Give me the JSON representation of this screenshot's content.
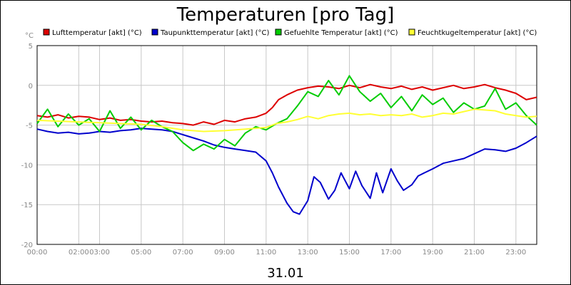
{
  "chart_data": {
    "type": "line",
    "title": "Temperaturen [pro Tag]",
    "ylabel": "°C",
    "date_label": "31.01",
    "xlim": [
      0,
      24
    ],
    "ylim": [
      -20,
      5
    ],
    "y_ticks": [
      5,
      0,
      -5,
      -10,
      -15,
      -20
    ],
    "x_ticks": [
      {
        "value": 0,
        "label": "00:00"
      },
      {
        "value": 2,
        "label": "02:00"
      },
      {
        "value": 3,
        "label": "03:00"
      },
      {
        "value": 5,
        "label": "05:00"
      },
      {
        "value": 7,
        "label": "07:00"
      },
      {
        "value": 9,
        "label": "09:00"
      },
      {
        "value": 11,
        "label": "11:00"
      },
      {
        "value": 13,
        "label": "13:00"
      },
      {
        "value": 15,
        "label": "15:00"
      },
      {
        "value": 17,
        "label": "17:00"
      },
      {
        "value": 19,
        "label": "19:00"
      },
      {
        "value": 21,
        "label": "21:00"
      },
      {
        "value": 23,
        "label": "23:00"
      }
    ],
    "grid": true,
    "legend_position": "top",
    "series": [
      {
        "name": "Lufttemperatur [akt] (°C)",
        "color": "#dd0000",
        "points": [
          [
            0,
            -3.8
          ],
          [
            0.5,
            -4.0
          ],
          [
            1,
            -3.7
          ],
          [
            1.5,
            -4.1
          ],
          [
            2,
            -3.9
          ],
          [
            2.5,
            -4.0
          ],
          [
            3,
            -4.3
          ],
          [
            3.5,
            -4.1
          ],
          [
            4,
            -4.4
          ],
          [
            4.5,
            -4.3
          ],
          [
            5,
            -4.5
          ],
          [
            5.5,
            -4.6
          ],
          [
            6,
            -4.5
          ],
          [
            6.5,
            -4.7
          ],
          [
            7,
            -4.8
          ],
          [
            7.5,
            -5.0
          ],
          [
            8,
            -4.6
          ],
          [
            8.5,
            -4.9
          ],
          [
            9,
            -4.4
          ],
          [
            9.5,
            -4.6
          ],
          [
            10,
            -4.2
          ],
          [
            10.5,
            -4.0
          ],
          [
            11,
            -3.5
          ],
          [
            11.3,
            -2.8
          ],
          [
            11.6,
            -1.8
          ],
          [
            12,
            -1.2
          ],
          [
            12.5,
            -0.6
          ],
          [
            13,
            -0.3
          ],
          [
            13.5,
            -0.1
          ],
          [
            14,
            -0.2
          ],
          [
            14.5,
            -0.4
          ],
          [
            15,
            0.0
          ],
          [
            15.5,
            -0.3
          ],
          [
            16,
            0.1
          ],
          [
            16.5,
            -0.2
          ],
          [
            17,
            -0.4
          ],
          [
            17.5,
            -0.1
          ],
          [
            18,
            -0.5
          ],
          [
            18.5,
            -0.2
          ],
          [
            19,
            -0.6
          ],
          [
            19.5,
            -0.3
          ],
          [
            20,
            0.0
          ],
          [
            20.5,
            -0.4
          ],
          [
            21,
            -0.2
          ],
          [
            21.5,
            0.1
          ],
          [
            22,
            -0.3
          ],
          [
            22.5,
            -0.6
          ],
          [
            23,
            -1.0
          ],
          [
            23.5,
            -1.8
          ],
          [
            24,
            -1.5
          ]
        ]
      },
      {
        "name": "Taupunkttemperatur [akt] (°C)",
        "color": "#0000cc",
        "points": [
          [
            0,
            -5.5
          ],
          [
            0.5,
            -5.8
          ],
          [
            1,
            -6.0
          ],
          [
            1.5,
            -5.9
          ],
          [
            2,
            -6.1
          ],
          [
            2.5,
            -6.0
          ],
          [
            3,
            -5.8
          ],
          [
            3.5,
            -5.9
          ],
          [
            4,
            -5.7
          ],
          [
            4.5,
            -5.6
          ],
          [
            5,
            -5.4
          ],
          [
            5.5,
            -5.5
          ],
          [
            6,
            -5.6
          ],
          [
            6.5,
            -5.8
          ],
          [
            7,
            -6.2
          ],
          [
            7.5,
            -6.6
          ],
          [
            8,
            -7.0
          ],
          [
            8.5,
            -7.5
          ],
          [
            9,
            -7.8
          ],
          [
            9.5,
            -8.0
          ],
          [
            10,
            -8.2
          ],
          [
            10.5,
            -8.4
          ],
          [
            11,
            -9.5
          ],
          [
            11.3,
            -11.0
          ],
          [
            11.6,
            -12.8
          ],
          [
            12,
            -14.8
          ],
          [
            12.3,
            -15.9
          ],
          [
            12.6,
            -16.2
          ],
          [
            13,
            -14.5
          ],
          [
            13.3,
            -11.5
          ],
          [
            13.6,
            -12.2
          ],
          [
            14,
            -14.3
          ],
          [
            14.3,
            -13.2
          ],
          [
            14.6,
            -11.0
          ],
          [
            15,
            -13.0
          ],
          [
            15.3,
            -10.8
          ],
          [
            15.6,
            -12.6
          ],
          [
            16,
            -14.2
          ],
          [
            16.3,
            -11.0
          ],
          [
            16.6,
            -13.5
          ],
          [
            17,
            -10.5
          ],
          [
            17.3,
            -12.0
          ],
          [
            17.6,
            -13.2
          ],
          [
            18,
            -12.5
          ],
          [
            18.3,
            -11.4
          ],
          [
            18.6,
            -11.0
          ],
          [
            19,
            -10.5
          ],
          [
            19.5,
            -9.8
          ],
          [
            20,
            -9.5
          ],
          [
            20.5,
            -9.2
          ],
          [
            21,
            -8.6
          ],
          [
            21.5,
            -8.0
          ],
          [
            22,
            -8.1
          ],
          [
            22.5,
            -8.3
          ],
          [
            23,
            -7.9
          ],
          [
            23.5,
            -7.2
          ],
          [
            24,
            -6.4
          ]
        ]
      },
      {
        "name": "Gefuehlte Temperatur [akt] (°C)",
        "color": "#00cc00",
        "points": [
          [
            0,
            -4.8
          ],
          [
            0.5,
            -3.0
          ],
          [
            1,
            -5.2
          ],
          [
            1.5,
            -3.6
          ],
          [
            2,
            -5.0
          ],
          [
            2.5,
            -4.2
          ],
          [
            3,
            -5.8
          ],
          [
            3.5,
            -3.2
          ],
          [
            4,
            -5.4
          ],
          [
            4.5,
            -4.0
          ],
          [
            5,
            -5.6
          ],
          [
            5.5,
            -4.4
          ],
          [
            6,
            -5.2
          ],
          [
            6.5,
            -5.8
          ],
          [
            7,
            -7.2
          ],
          [
            7.5,
            -8.2
          ],
          [
            8,
            -7.4
          ],
          [
            8.5,
            -8.0
          ],
          [
            9,
            -6.8
          ],
          [
            9.5,
            -7.6
          ],
          [
            10,
            -6.0
          ],
          [
            10.5,
            -5.2
          ],
          [
            11,
            -5.6
          ],
          [
            11.5,
            -4.8
          ],
          [
            12,
            -4.2
          ],
          [
            12.5,
            -2.6
          ],
          [
            13,
            -0.8
          ],
          [
            13.5,
            -1.4
          ],
          [
            14,
            0.6
          ],
          [
            14.5,
            -1.2
          ],
          [
            15,
            1.2
          ],
          [
            15.5,
            -0.8
          ],
          [
            16,
            -2.0
          ],
          [
            16.5,
            -1.0
          ],
          [
            17,
            -2.8
          ],
          [
            17.5,
            -1.4
          ],
          [
            18,
            -3.2
          ],
          [
            18.5,
            -1.2
          ],
          [
            19,
            -2.4
          ],
          [
            19.5,
            -1.6
          ],
          [
            20,
            -3.4
          ],
          [
            20.5,
            -2.2
          ],
          [
            21,
            -3.0
          ],
          [
            21.5,
            -2.6
          ],
          [
            22,
            -0.4
          ],
          [
            22.5,
            -3.0
          ],
          [
            23,
            -2.2
          ],
          [
            23.5,
            -3.8
          ],
          [
            24,
            -5.0
          ]
        ]
      },
      {
        "name": "Feuchtkugeltemperatur [akt] (°C)",
        "color": "#ffff33",
        "points": [
          [
            0,
            -4.4
          ],
          [
            1,
            -4.5
          ],
          [
            2,
            -4.6
          ],
          [
            3,
            -4.7
          ],
          [
            4,
            -4.8
          ],
          [
            5,
            -4.9
          ],
          [
            6,
            -5.2
          ],
          [
            7,
            -5.6
          ],
          [
            8,
            -5.8
          ],
          [
            9,
            -5.7
          ],
          [
            10,
            -5.5
          ],
          [
            11,
            -5.3
          ],
          [
            11.5,
            -4.8
          ],
          [
            12,
            -4.6
          ],
          [
            12.5,
            -4.3
          ],
          [
            13,
            -3.9
          ],
          [
            13.5,
            -4.2
          ],
          [
            14,
            -3.8
          ],
          [
            14.5,
            -3.6
          ],
          [
            15,
            -3.5
          ],
          [
            15.5,
            -3.7
          ],
          [
            16,
            -3.6
          ],
          [
            16.5,
            -3.8
          ],
          [
            17,
            -3.7
          ],
          [
            17.5,
            -3.8
          ],
          [
            18,
            -3.6
          ],
          [
            18.5,
            -4.0
          ],
          [
            19,
            -3.8
          ],
          [
            19.5,
            -3.5
          ],
          [
            20,
            -3.6
          ],
          [
            20.5,
            -3.3
          ],
          [
            21,
            -3.0
          ],
          [
            21.5,
            -3.1
          ],
          [
            22,
            -3.2
          ],
          [
            22.5,
            -3.6
          ],
          [
            23,
            -3.8
          ],
          [
            23.5,
            -4.0
          ],
          [
            24,
            -3.9
          ]
        ]
      }
    ]
  }
}
